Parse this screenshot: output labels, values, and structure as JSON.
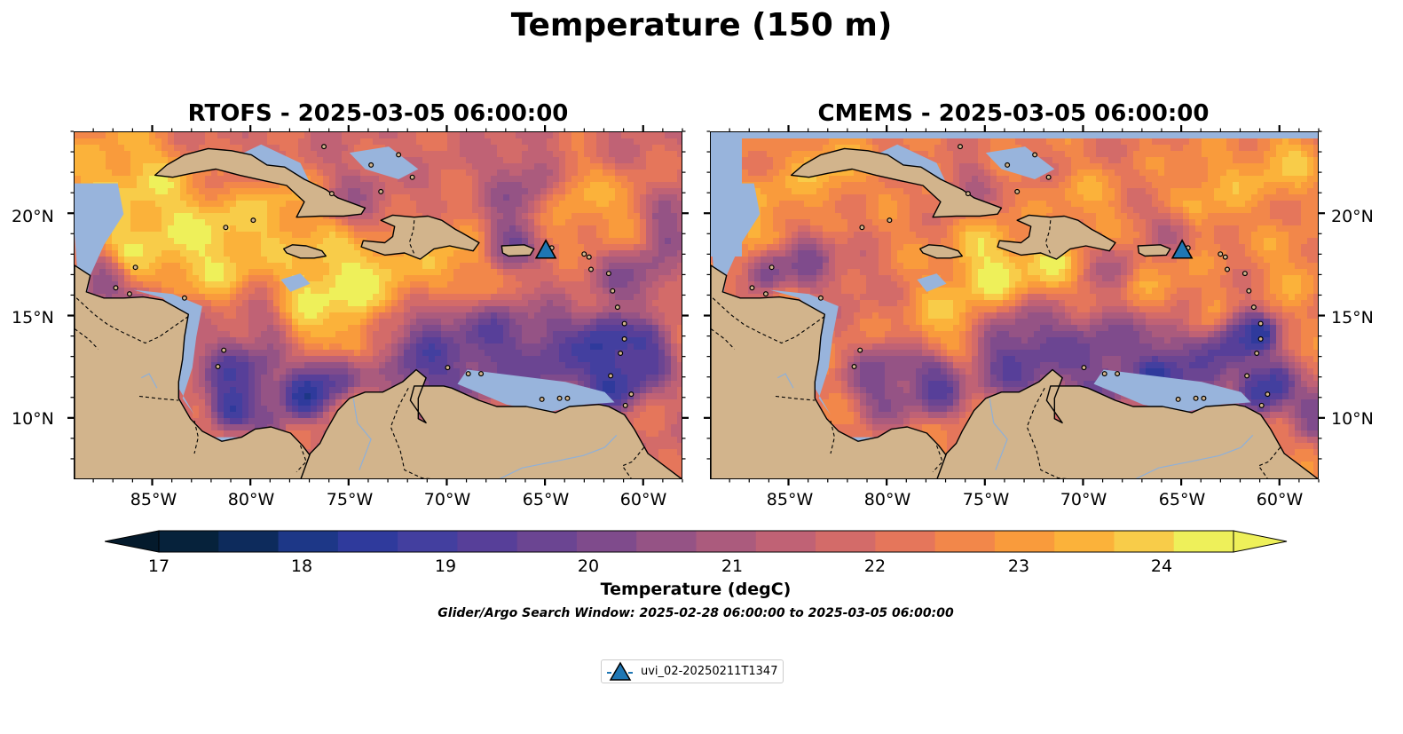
{
  "figure": {
    "title": "Temperature (150 m)",
    "search_window": "Glider/Argo Search Window: 2025-02-28 06:00:00 to 2025-03-05 06:00:00"
  },
  "panels": [
    {
      "title": "RTOFS - 2025-03-05 06:00:00",
      "model": "RTOFS"
    },
    {
      "title": "CMEMS - 2025-03-05 06:00:00",
      "model": "CMEMS"
    }
  ],
  "axes": {
    "lat_ticks": [
      "20°N",
      "15°N",
      "10°N"
    ],
    "lon_ticks": [
      "85°W",
      "80°W",
      "75°W",
      "70°W",
      "65°W",
      "60°W"
    ],
    "lon_range": [
      -89,
      -58
    ],
    "lat_range": [
      7,
      24
    ]
  },
  "colorbar": {
    "label": "Temperature (degC)",
    "ticks": [
      "17",
      "18",
      "19",
      "20",
      "21",
      "22",
      "23",
      "24"
    ],
    "range": [
      17,
      24.5
    ],
    "extend": "both",
    "colors": [
      "#06223b",
      "#0d2b5c",
      "#1d3787",
      "#2f3a9c",
      "#433f9f",
      "#573f99",
      "#6b4592",
      "#7f4b8c",
      "#955385",
      "#ab5b7d",
      "#c06275",
      "#d36b69",
      "#e5765b",
      "#f2874a",
      "#f99b3c",
      "#fbb23a",
      "#f8cc49",
      "#eef05a"
    ],
    "under_color": "#041a2c",
    "over_color": "#eef05a"
  },
  "legend": {
    "label": "uvi_02-20250211T1347",
    "marker": "triangle-icon",
    "color": "#1f77b4"
  },
  "glider": {
    "lon": -65.0,
    "lat": 18.2
  },
  "map_colors": {
    "land": "#d2b48c",
    "shallow": "#98b4dc",
    "pacific": "#06223b"
  }
}
